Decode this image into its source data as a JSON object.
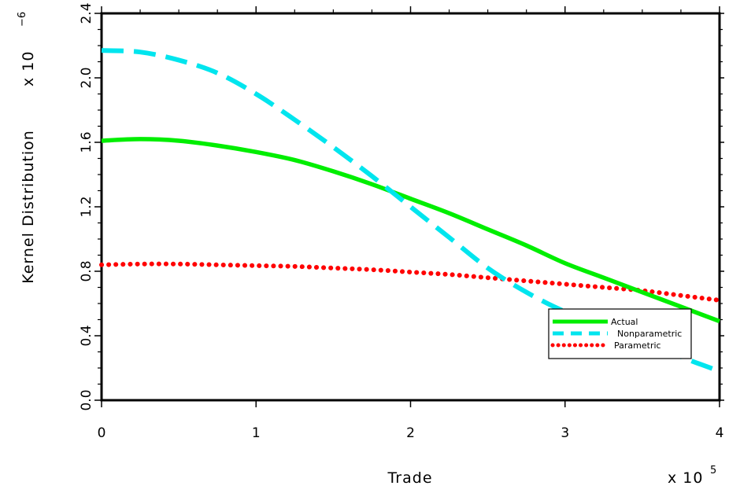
{
  "chart_data": {
    "type": "line",
    "title": "",
    "xlabel": "Trade",
    "ylabel": "Kernel Distribution",
    "x_multiplier": "x 10",
    "x_multiplier_exp": "5",
    "y_multiplier": "x 10",
    "y_multiplier_exp": "−6",
    "xlim": [
      0,
      4
    ],
    "ylim": [
      0,
      2.4
    ],
    "x_ticks": [
      0,
      1,
      2,
      3,
      4
    ],
    "x_tick_labels": [
      "0",
      "1",
      "2",
      "3",
      "4"
    ],
    "y_ticks": [
      0.0,
      0.4,
      0.8,
      1.2,
      1.6,
      2.0,
      2.4
    ],
    "y_tick_labels": [
      "0.0",
      "0.4",
      "0.8",
      "1.2",
      "1.6",
      "2.0",
      "2.4"
    ],
    "grid": false,
    "legend_position": "bottom-right",
    "x": [
      0,
      0.25,
      0.5,
      0.75,
      1.0,
      1.25,
      1.5,
      1.75,
      2.0,
      2.25,
      2.5,
      2.75,
      3.0,
      3.25,
      3.5,
      3.75,
      4.0
    ],
    "series": [
      {
        "name": "Actual",
        "color": "#00ee00",
        "style": "solid",
        "values": [
          1.61,
          1.62,
          1.61,
          1.58,
          1.54,
          1.49,
          1.42,
          1.34,
          1.25,
          1.16,
          1.06,
          0.96,
          0.85,
          0.76,
          0.67,
          0.58,
          0.49
        ]
      },
      {
        "name": "Nonparametric",
        "color": "#00e5ee",
        "style": "dashed",
        "values": [
          2.17,
          2.16,
          2.11,
          2.03,
          1.9,
          1.74,
          1.57,
          1.39,
          1.2,
          1.01,
          0.82,
          0.67,
          0.55,
          0.47,
          0.38,
          0.27,
          0.18
        ]
      },
      {
        "name": "Parametric",
        "color": "#ff0000",
        "style": "dotted",
        "values": [
          0.84,
          0.845,
          0.845,
          0.84,
          0.835,
          0.83,
          0.82,
          0.81,
          0.795,
          0.78,
          0.76,
          0.74,
          0.72,
          0.7,
          0.68,
          0.65,
          0.62
        ]
      }
    ]
  }
}
